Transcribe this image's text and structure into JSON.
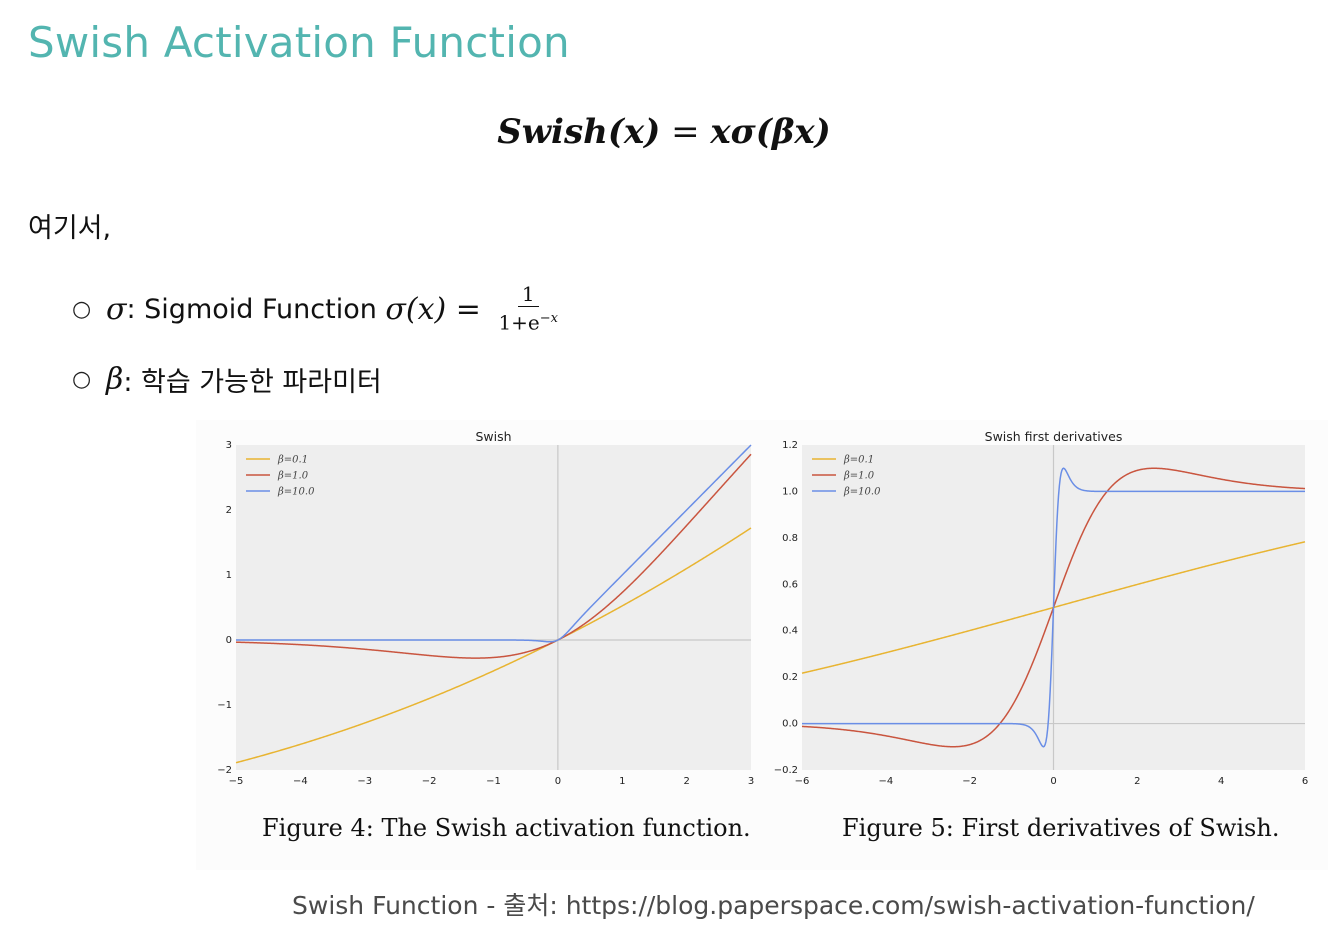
{
  "page": {
    "title": "Swish Activation Function",
    "formula_lhs": "Swish(x)",
    "formula_eq": " = ",
    "formula_rhs": "xσ(βx)",
    "intro": "여기서,",
    "definitions": [
      {
        "symbol": "σ",
        "text": ": Sigmoid Function ",
        "math": "σ(x) = ",
        "frac_num": "1",
        "frac_den": "1+e",
        "frac_exp": "−x"
      },
      {
        "symbol": "β",
        "text": ": 학습 가능한 파라미터"
      }
    ],
    "source": "Swish Function - 출처: https://blog.paperspace.com/swish-activation-function/"
  },
  "chart_data": [
    {
      "type": "line",
      "title": "Swish",
      "xlim": [
        -5,
        3
      ],
      "ylim": [
        -2,
        3
      ],
      "xticks": [
        "−5",
        "−4",
        "−3",
        "−2",
        "−1",
        "0",
        "1",
        "2",
        "3"
      ],
      "yticks": [
        "−2",
        "−1",
        "0",
        "1",
        "2",
        "3"
      ],
      "legend": "top-left",
      "caption": "Figure 4: The Swish activation function.",
      "series": [
        {
          "name": "β=0.1",
          "color": "#e8b431",
          "beta": 0.1
        },
        {
          "name": "β=1.0",
          "color": "#c9553f",
          "beta": 1.0
        },
        {
          "name": "β=10.0",
          "color": "#6a8ee6",
          "beta": 10.0
        }
      ]
    },
    {
      "type": "line",
      "title": "Swish first derivatives",
      "xlim": [
        -6,
        6
      ],
      "ylim": [
        -0.2,
        1.2
      ],
      "xticks": [
        "−6",
        "−4",
        "−2",
        "0",
        "2",
        "4",
        "6"
      ],
      "yticks": [
        "−0.2",
        "0.0",
        "0.2",
        "0.4",
        "0.6",
        "0.8",
        "1.0",
        "1.2"
      ],
      "legend": "top-left",
      "caption": "Figure 5: First derivatives of Swish.",
      "series": [
        {
          "name": "β=0.1",
          "color": "#e8b431",
          "beta": 0.1
        },
        {
          "name": "β=1.0",
          "color": "#c9553f",
          "beta": 1.0
        },
        {
          "name": "β=10.0",
          "color": "#6a8ee6",
          "beta": 10.0
        }
      ]
    }
  ]
}
